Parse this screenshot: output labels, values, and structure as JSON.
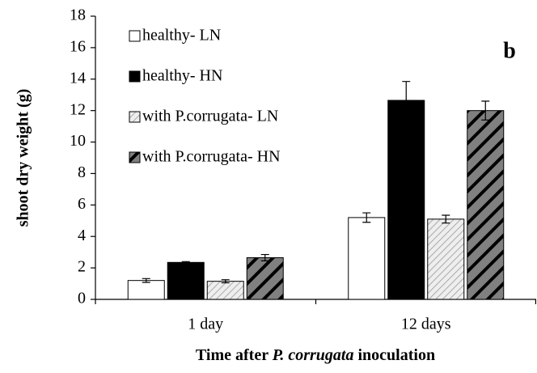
{
  "chart_data": {
    "type": "bar",
    "ylabel": "shoot dry weight (g)",
    "xlabel": [
      "Time after ",
      "P. corrugata",
      " inoculation"
    ],
    "annotation": "b",
    "categories": [
      "1 day",
      "12 days"
    ],
    "ylim": [
      0,
      18
    ],
    "yticks": [
      0,
      2,
      4,
      6,
      8,
      10,
      12,
      14,
      16,
      18
    ],
    "legend": "top-left",
    "series": [
      {
        "name": "healthy- LN",
        "color": "#ffffff",
        "pattern": "none",
        "values": [
          1.2,
          5.2
        ],
        "errors": [
          0.12,
          0.3
        ]
      },
      {
        "name": "healthy- HN",
        "color": "#000000",
        "pattern": "none",
        "values": [
          2.35,
          12.65
        ],
        "errors": [
          0.05,
          1.2
        ]
      },
      {
        "name": "with P.corrugata- LN",
        "color": "#e6e6e6",
        "pattern": "light-diagonal",
        "values": [
          1.15,
          5.1
        ],
        "errors": [
          0.1,
          0.25
        ]
      },
      {
        "name": "with P.corrugata- HN",
        "color": "#808080",
        "pattern": "wide-diagonal",
        "values": [
          2.65,
          12.0
        ],
        "errors": [
          0.2,
          0.6
        ]
      }
    ]
  }
}
